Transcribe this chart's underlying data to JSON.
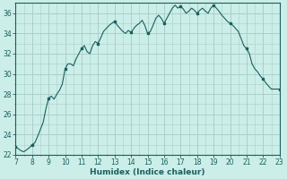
{
  "title": "",
  "xlabel": "Humidex (Indice chaleur)",
  "bg_color": "#cceee8",
  "grid_major_color": "#aacfca",
  "grid_minor_color": "#aacfca",
  "line_color": "#1a5f5f",
  "x_min": 7,
  "x_max": 23,
  "y_min": 22,
  "y_max": 37,
  "x_ticks": [
    7,
    8,
    9,
    10,
    11,
    12,
    13,
    14,
    15,
    16,
    17,
    18,
    19,
    20,
    21,
    22,
    23
  ],
  "y_ticks": [
    22,
    24,
    26,
    28,
    30,
    32,
    34,
    36
  ],
  "data_x": [
    7.0,
    7.17,
    7.33,
    7.5,
    7.67,
    7.83,
    8.0,
    8.17,
    8.33,
    8.5,
    8.67,
    8.83,
    9.0,
    9.17,
    9.33,
    9.5,
    9.67,
    9.83,
    10.0,
    10.17,
    10.33,
    10.5,
    10.67,
    10.83,
    11.0,
    11.17,
    11.33,
    11.5,
    11.67,
    11.83,
    12.0,
    12.17,
    12.33,
    12.5,
    12.67,
    12.83,
    13.0,
    13.17,
    13.33,
    13.5,
    13.67,
    13.83,
    14.0,
    14.17,
    14.33,
    14.5,
    14.67,
    14.83,
    15.0,
    15.17,
    15.33,
    15.5,
    15.67,
    15.83,
    16.0,
    16.17,
    16.33,
    16.5,
    16.67,
    16.83,
    17.0,
    17.17,
    17.33,
    17.5,
    17.67,
    17.83,
    18.0,
    18.17,
    18.33,
    18.5,
    18.67,
    18.83,
    19.0,
    19.17,
    19.33,
    19.5,
    19.67,
    19.83,
    20.0,
    20.17,
    20.33,
    20.5,
    20.67,
    20.83,
    21.0,
    21.17,
    21.33,
    21.5,
    21.67,
    21.83,
    22.0,
    22.17,
    22.33,
    22.5,
    22.67,
    22.83,
    23.0
  ],
  "data_y": [
    22.8,
    22.6,
    22.4,
    22.3,
    22.5,
    22.7,
    23.0,
    23.2,
    23.8,
    24.5,
    25.2,
    26.5,
    27.6,
    27.8,
    27.5,
    28.0,
    28.4,
    29.0,
    30.5,
    31.0,
    31.0,
    30.8,
    31.5,
    32.0,
    32.5,
    32.8,
    32.2,
    32.0,
    32.8,
    33.2,
    33.0,
    33.6,
    34.2,
    34.5,
    34.8,
    35.0,
    35.2,
    34.8,
    34.5,
    34.2,
    34.0,
    34.3,
    34.1,
    34.5,
    34.8,
    35.0,
    35.3,
    34.8,
    34.0,
    34.2,
    34.8,
    35.5,
    35.8,
    35.5,
    35.0,
    35.5,
    36.0,
    36.5,
    36.8,
    36.5,
    36.7,
    36.4,
    36.0,
    36.2,
    36.5,
    36.3,
    36.0,
    36.3,
    36.5,
    36.2,
    36.0,
    36.5,
    36.8,
    36.5,
    36.2,
    35.8,
    35.5,
    35.2,
    35.0,
    34.8,
    34.5,
    34.2,
    33.5,
    32.8,
    32.5,
    32.0,
    31.0,
    30.5,
    30.2,
    29.8,
    29.5,
    29.1,
    28.8,
    28.5,
    28.5,
    28.5,
    28.5
  ],
  "marker_x": [
    7,
    8,
    9,
    10,
    11,
    12,
    13,
    14,
    15,
    16,
    17,
    18,
    19,
    20,
    21,
    22,
    23
  ],
  "marker_y": [
    22.8,
    23.0,
    27.6,
    30.5,
    32.5,
    33.0,
    35.2,
    34.1,
    34.0,
    35.0,
    36.7,
    36.0,
    36.8,
    35.0,
    32.5,
    29.5,
    28.5
  ]
}
